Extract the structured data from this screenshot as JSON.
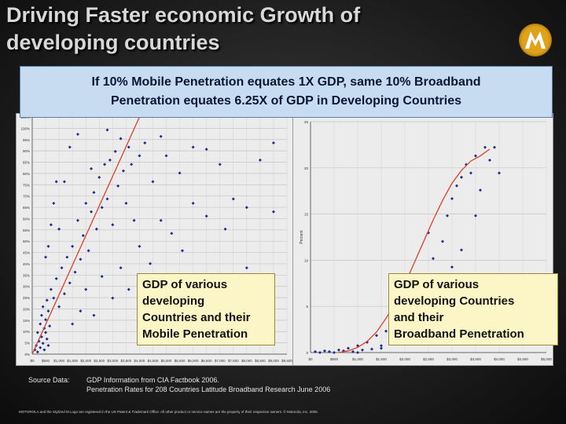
{
  "title": {
    "line1": "Driving Faster economic Growth of",
    "line2": "developing countries"
  },
  "logo_icon": "motorola-batwing-logo",
  "banner": {
    "line1": "If 10% Mobile Penetration equates 1X GDP, same 10% Broadband",
    "line2": "Penetration equates 6.25X of GDP in Developing Countries"
  },
  "callouts": {
    "mobile": [
      "GDP of various",
      "developing",
      "Countries and their",
      "Mobile Penetration"
    ],
    "broadband": [
      "GDP of various",
      "developing Countries",
      "and their",
      "Broadband  Penetration"
    ]
  },
  "source": {
    "label": "Source Data:",
    "line1": "GDP Information from CIA Factbook 2006.",
    "line2": "Penetration Rates for 208 Countries Latitude Broadband Research June 2006"
  },
  "footer": "MOTOROLA and the Stylized M Logo are registered in the US Patent & Trademark Office. All other product or service names are the property of their respective owners. © Motorola, Inc. 2006.",
  "chart_data": [
    {
      "type": "scatter",
      "ylabel": "",
      "xlabel": "",
      "x_ticks": [
        "$0",
        "$500",
        "$1,000",
        "$1,500",
        "$2,000",
        "$2,500",
        "$3,000",
        "$3,500",
        "$4,000",
        "$4,500",
        "$5,000",
        "$5,500",
        "$6,000",
        "$6,500",
        "$7,000",
        "$7,500",
        "$8,000",
        "$8,500",
        "$9,000",
        "$9,500"
      ],
      "xlim": [
        0,
        9500
      ],
      "y_ticks": [
        "0%",
        "5%",
        "10%",
        "15%",
        "20%",
        "25%",
        "30%",
        "35%",
        "40%",
        "45%",
        "50%",
        "55%",
        "60%",
        "65%",
        "70%",
        "75%",
        "80%",
        "85%",
        "90%",
        "95%",
        "100%",
        "105%"
      ],
      "ylim": [
        0,
        110
      ],
      "grid": true,
      "trend": {
        "type": "linear",
        "points": [
          [
            0,
            0
          ],
          [
            4000,
            110
          ]
        ]
      },
      "points": [
        [
          100,
          2
        ],
        [
          150,
          4
        ],
        [
          200,
          1
        ],
        [
          250,
          6
        ],
        [
          300,
          3
        ],
        [
          350,
          8
        ],
        [
          400,
          5
        ],
        [
          450,
          2
        ],
        [
          500,
          10
        ],
        [
          550,
          7
        ],
        [
          600,
          4
        ],
        [
          200,
          10
        ],
        [
          300,
          14
        ],
        [
          350,
          18
        ],
        [
          400,
          22
        ],
        [
          450,
          12
        ],
        [
          500,
          16
        ],
        [
          550,
          25
        ],
        [
          600,
          20
        ],
        [
          650,
          13
        ],
        [
          700,
          30
        ],
        [
          800,
          26
        ],
        [
          900,
          35
        ],
        [
          1000,
          22
        ],
        [
          1100,
          40
        ],
        [
          1200,
          28
        ],
        [
          1300,
          45
        ],
        [
          1400,
          33
        ],
        [
          1500,
          50
        ],
        [
          1600,
          38
        ],
        [
          1700,
          62
        ],
        [
          1800,
          44
        ],
        [
          1900,
          55
        ],
        [
          2000,
          70
        ],
        [
          2100,
          48
        ],
        [
          2200,
          66
        ],
        [
          2300,
          75
        ],
        [
          2400,
          58
        ],
        [
          2500,
          82
        ],
        [
          2600,
          68
        ],
        [
          2700,
          88
        ],
        [
          2800,
          72
        ],
        [
          2900,
          90
        ],
        [
          3000,
          60
        ],
        [
          3100,
          94
        ],
        [
          3200,
          78
        ],
        [
          3300,
          100
        ],
        [
          3400,
          85
        ],
        [
          3500,
          70
        ],
        [
          3600,
          96
        ],
        [
          3700,
          88
        ],
        [
          3800,
          62
        ],
        [
          4000,
          92
        ],
        [
          4200,
          98
        ],
        [
          4500,
          80
        ],
        [
          4800,
          101
        ],
        [
          5000,
          92
        ],
        [
          5500,
          84
        ],
        [
          6000,
          96
        ],
        [
          6500,
          95
        ],
        [
          7000,
          88
        ],
        [
          7500,
          72
        ],
        [
          8000,
          68
        ],
        [
          8500,
          90
        ],
        [
          9000,
          98
        ],
        [
          1500,
          14
        ],
        [
          1800,
          20
        ],
        [
          2000,
          30
        ],
        [
          2300,
          18
        ],
        [
          2600,
          36
        ],
        [
          3000,
          26
        ],
        [
          3300,
          40
        ],
        [
          3600,
          30
        ],
        [
          4000,
          50
        ],
        [
          4400,
          42
        ],
        [
          4800,
          62
        ],
        [
          5200,
          56
        ],
        [
          5600,
          48
        ],
        [
          6000,
          70
        ],
        [
          6500,
          64
        ],
        [
          7200,
          58
        ],
        [
          8000,
          40
        ],
        [
          9000,
          66
        ],
        [
          1000,
          58
        ],
        [
          1200,
          80
        ],
        [
          1400,
          96
        ],
        [
          1700,
          102
        ],
        [
          2200,
          86
        ],
        [
          2800,
          104
        ],
        [
          500,
          45
        ],
        [
          700,
          60
        ],
        [
          800,
          70
        ],
        [
          900,
          80
        ],
        [
          600,
          50
        ]
      ]
    },
    {
      "type": "scatter",
      "ylabel": "Percent",
      "xlabel": "",
      "x_ticks": [
        "$0",
        "$500",
        "$1,000",
        "$1,500",
        "$2,000",
        "$2,500",
        "$3,000",
        "$3,500",
        "$4,000",
        "$4,500",
        "$5,000"
      ],
      "xlim": [
        0,
        5000
      ],
      "y_ticks": [
        "0",
        "5",
        "10",
        "15",
        "20",
        "25"
      ],
      "ylim": [
        0,
        27
      ],
      "grid": true,
      "trend": {
        "type": "curve",
        "points": [
          [
            600,
            0
          ],
          [
            800,
            0.2
          ],
          [
            1000,
            0.6
          ],
          [
            1200,
            1.3
          ],
          [
            1400,
            2.4
          ],
          [
            1600,
            4
          ],
          [
            1800,
            5.8
          ],
          [
            2000,
            8
          ],
          [
            2200,
            10.5
          ],
          [
            2400,
            13
          ],
          [
            2600,
            15.5
          ],
          [
            2800,
            17.8
          ],
          [
            3000,
            19.8
          ],
          [
            3200,
            21.3
          ],
          [
            3400,
            22.4
          ],
          [
            3600,
            23
          ],
          [
            3800,
            23.8
          ]
        ]
      },
      "points": [
        [
          100,
          0.1
        ],
        [
          200,
          0
        ],
        [
          300,
          0.2
        ],
        [
          400,
          0.1
        ],
        [
          500,
          0
        ],
        [
          600,
          0.3
        ],
        [
          700,
          0.2
        ],
        [
          800,
          0.5
        ],
        [
          900,
          0.1
        ],
        [
          1000,
          0.8
        ],
        [
          1100,
          0.3
        ],
        [
          1200,
          1.2
        ],
        [
          1300,
          0.4
        ],
        [
          1400,
          2.0
        ],
        [
          1500,
          0.8
        ],
        [
          1600,
          2.5
        ],
        [
          1700,
          1.2
        ],
        [
          1800,
          3.0
        ],
        [
          1900,
          1.6
        ],
        [
          2000,
          4.5
        ],
        [
          2100,
          2.0
        ],
        [
          2200,
          5.0
        ],
        [
          2400,
          7.0
        ],
        [
          2500,
          1.5
        ],
        [
          2600,
          11
        ],
        [
          2700,
          9
        ],
        [
          2800,
          13
        ],
        [
          2900,
          16
        ],
        [
          3000,
          18
        ],
        [
          3100,
          19.5
        ],
        [
          3200,
          20.5
        ],
        [
          3300,
          22
        ],
        [
          3400,
          21
        ],
        [
          3500,
          23
        ],
        [
          3600,
          19
        ],
        [
          3700,
          24
        ],
        [
          3800,
          22.5
        ],
        [
          3900,
          24
        ],
        [
          4000,
          21
        ],
        [
          3500,
          16
        ],
        [
          3000,
          10
        ],
        [
          2500,
          14
        ],
        [
          2000,
          8
        ],
        [
          1500,
          0.5
        ],
        [
          1000,
          0
        ],
        [
          2200,
          1
        ],
        [
          2800,
          3
        ],
        [
          3200,
          12
        ],
        [
          3600,
          8
        ],
        [
          4000,
          6.5
        ]
      ]
    }
  ]
}
